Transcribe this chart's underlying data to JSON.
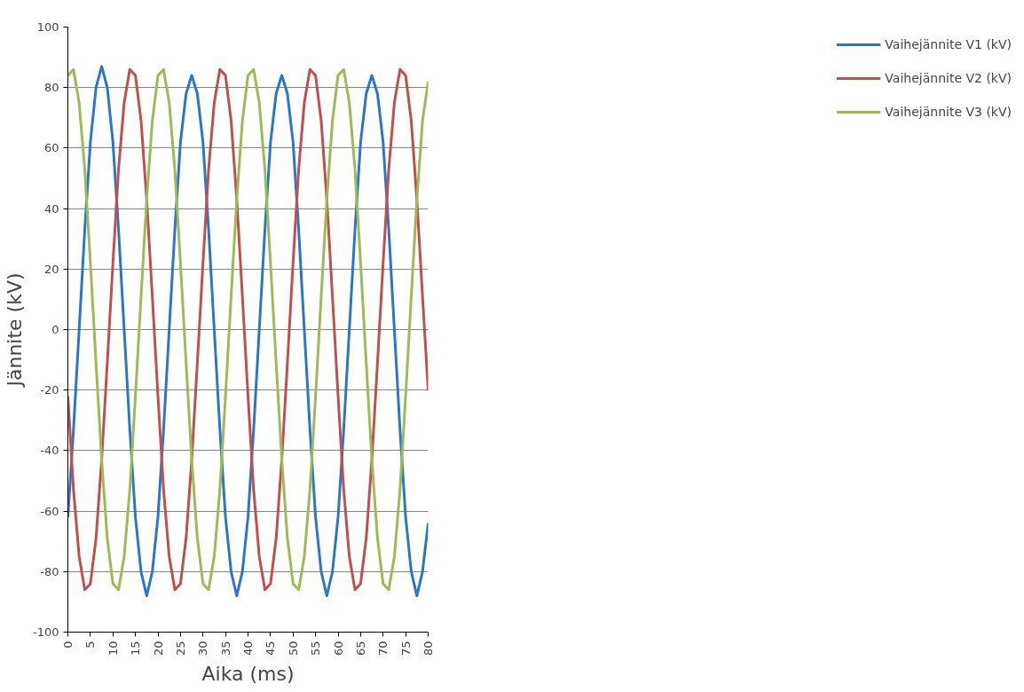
{
  "chart_data": {
    "type": "line",
    "xlabel": "Aika (ms)",
    "ylabel": "Jännite (kV)",
    "x": [
      0,
      1.25,
      2.5,
      3.75,
      5,
      6.25,
      7.5,
      8.75,
      10,
      11.25,
      12.5,
      13.75,
      15,
      16.25,
      17.5,
      18.75,
      20,
      21.25,
      22.5,
      23.75,
      25,
      26.25,
      27.5,
      28.75,
      30,
      31.25,
      32.5,
      33.75,
      35,
      36.25,
      37.5,
      38.75,
      40,
      41.25,
      42.5,
      43.75,
      45,
      46.25,
      47.5,
      48.75,
      50,
      51.25,
      52.5,
      53.75,
      55,
      56.25,
      57.5,
      58.75,
      60,
      61.25,
      62.5,
      63.75,
      65,
      66.25,
      67.5,
      68.75,
      70,
      71.25,
      72.5,
      73.75,
      75,
      76.25,
      77.5,
      78.75,
      80
    ],
    "series": [
      {
        "name": "Vaihejännite V1 (kV)",
        "color": "#2e75c7",
        "values": [
          -62,
          -33,
          0,
          33,
          62,
          80,
          87,
          80,
          62,
          33,
          0,
          -33,
          -62,
          -80,
          -88,
          -80,
          -62,
          -33,
          0,
          33,
          62,
          78,
          84,
          78,
          62,
          33,
          0,
          -33,
          -62,
          -80,
          -88,
          -80,
          -62,
          -33,
          0,
          33,
          62,
          78,
          84,
          78,
          62,
          33,
          0,
          -33,
          -62,
          -80,
          -88,
          -80,
          -62,
          -33,
          0,
          33,
          62,
          78,
          84,
          78,
          62,
          33,
          0,
          -33,
          -62,
          -80,
          -88,
          -80,
          -64
        ]
      },
      {
        "name": "Vaihejännite V2 (kV)",
        "color": "#c0504d",
        "values": [
          -22,
          -53,
          -75,
          -86,
          -84,
          -69,
          -43,
          -11,
          22,
          53,
          75,
          86,
          84,
          69,
          43,
          11,
          -22,
          -53,
          -75,
          -86,
          -84,
          -69,
          -43,
          -11,
          22,
          53,
          75,
          86,
          84,
          69,
          43,
          11,
          -22,
          -53,
          -75,
          -86,
          -84,
          -69,
          -43,
          -11,
          22,
          53,
          75,
          86,
          84,
          69,
          43,
          11,
          -22,
          -53,
          -75,
          -86,
          -84,
          -69,
          -43,
          -11,
          22,
          53,
          75,
          86,
          84,
          69,
          43,
          11,
          -20
        ]
      },
      {
        "name": "Vaihejännite V3 (kV)",
        "color": "#9bbb59",
        "values": [
          84,
          86,
          75,
          53,
          22,
          -11,
          -43,
          -69,
          -84,
          -86,
          -75,
          -53,
          -22,
          11,
          43,
          69,
          84,
          86,
          75,
          53,
          22,
          -11,
          -43,
          -69,
          -84,
          -86,
          -75,
          -53,
          -22,
          11,
          43,
          69,
          84,
          86,
          75,
          53,
          22,
          -11,
          -43,
          -69,
          -84,
          -86,
          -75,
          -53,
          -22,
          11,
          43,
          69,
          84,
          86,
          75,
          53,
          22,
          -11,
          -43,
          -69,
          -84,
          -86,
          -75,
          -53,
          -22,
          11,
          43,
          69,
          82
        ]
      }
    ],
    "xlim": [
      0,
      80
    ],
    "xticks": [
      0,
      5,
      10,
      15,
      20,
      25,
      30,
      35,
      40,
      45,
      50,
      55,
      60,
      65,
      70,
      75,
      80
    ],
    "ylim": [
      -100,
      100
    ],
    "yticks": [
      -100,
      -80,
      -60,
      -40,
      -20,
      0,
      20,
      40,
      60,
      80,
      100
    ],
    "grid": "y",
    "legend": "right",
    "marker": "none",
    "line_style": "solid"
  }
}
